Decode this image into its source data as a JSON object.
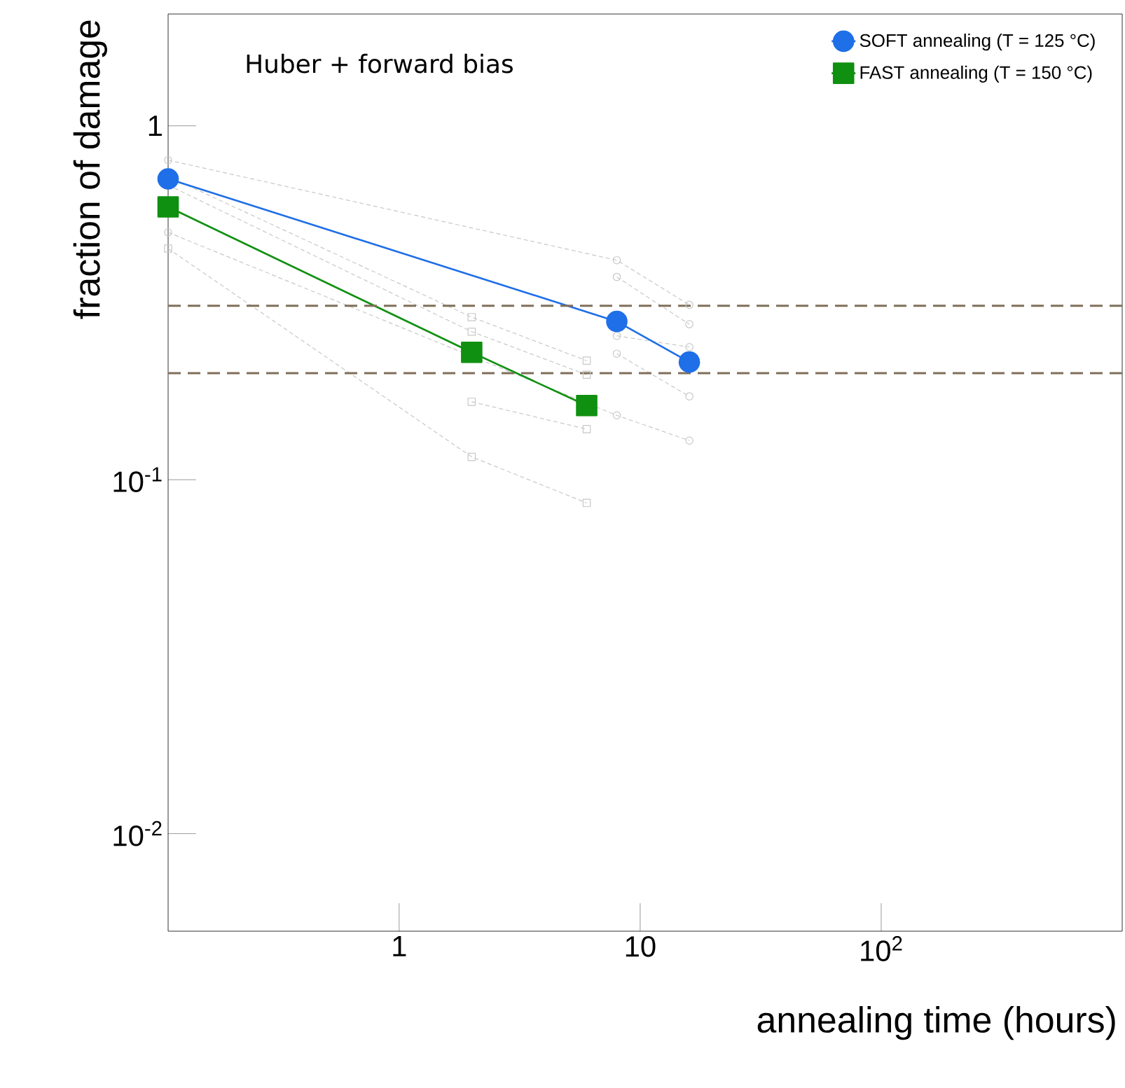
{
  "chart_data": {
    "type": "line",
    "xlabel": "annealing time (hours)",
    "ylabel": "fraction of damage",
    "log": "xy",
    "xlim": [
      0.11,
      1000
    ],
    "ylim": [
      0.0053,
      2.07
    ],
    "xticks": [
      1,
      10,
      {
        "value": 100,
        "label": "10$^{2}$"
      }
    ],
    "yticks": [
      {
        "value": 0.01,
        "label": "10$^{-2}$"
      },
      {
        "value": 0.1,
        "label": "10$^{-1}$"
      },
      1
    ],
    "legend": "top right",
    "grid": false,
    "annotations": [
      "Huber + forward bias"
    ],
    "ref_lines": [
      {
        "axis": "y",
        "value": 0.31,
        "color": "#7f6f5a",
        "line_style": "dashed"
      },
      {
        "axis": "y",
        "value": 0.2,
        "color": "#7f6f5a",
        "line_style": "dashed"
      }
    ],
    "series": [
      {
        "color": "#c8c8c8",
        "marker": "circle",
        "line_style": "dashed",
        "x": [
          0.11,
          8,
          16
        ],
        "values": [
          0.8,
          0.417,
          0.312
        ]
      },
      {
        "color": "#c8c8c8",
        "marker": "circle",
        "line_style": "dashed",
        "x": [
          8,
          16
        ],
        "values": [
          0.374,
          0.275
        ]
      },
      {
        "color": "#c8c8c8",
        "marker": "circle",
        "line_style": "dashed",
        "x": [
          8,
          16
        ],
        "values": [
          0.255,
          0.237
        ]
      },
      {
        "color": "#c8c8c8",
        "marker": "circle",
        "line_style": "dashed",
        "x": [
          8,
          16
        ],
        "values": [
          0.227,
          0.172
        ]
      },
      {
        "color": "#c8c8c8",
        "marker": "circle",
        "line_style": "dashed",
        "x": [
          0.11,
          8,
          16
        ],
        "values": [
          0.5,
          0.152,
          0.129
        ]
      },
      {
        "color": "#c8c8c8",
        "marker": "square",
        "line_style": "dashed",
        "x": [
          0.11,
          2,
          6
        ],
        "values": [
          0.72,
          0.288,
          0.217
        ]
      },
      {
        "color": "#c8c8c8",
        "marker": "square",
        "line_style": "dashed",
        "x": [
          0.11,
          2,
          6
        ],
        "values": [
          0.68,
          0.262,
          0.198
        ]
      },
      {
        "color": "#c8c8c8",
        "marker": "square",
        "line_style": "dashed",
        "x": [
          2,
          6
        ],
        "values": [
          0.166,
          0.139
        ]
      },
      {
        "color": "#c8c8c8",
        "marker": "square",
        "line_style": "dashed",
        "x": [
          0.11,
          2,
          6
        ],
        "values": [
          0.45,
          0.116,
          0.086
        ]
      },
      {
        "name": "SOFT annealing (T = 125 °C)",
        "color": "#1f6fe8",
        "marker": "circle",
        "line_style": "solid",
        "x": [
          0.11,
          8,
          16
        ],
        "values": [
          0.708,
          0.28,
          0.215
        ]
      },
      {
        "name": "FAST annealing (T = 150 °C)",
        "color": "#109010",
        "marker": "square",
        "line_style": "solid",
        "x": [
          0.11,
          2,
          6
        ],
        "values": [
          0.59,
          0.229,
          0.162
        ]
      }
    ]
  }
}
